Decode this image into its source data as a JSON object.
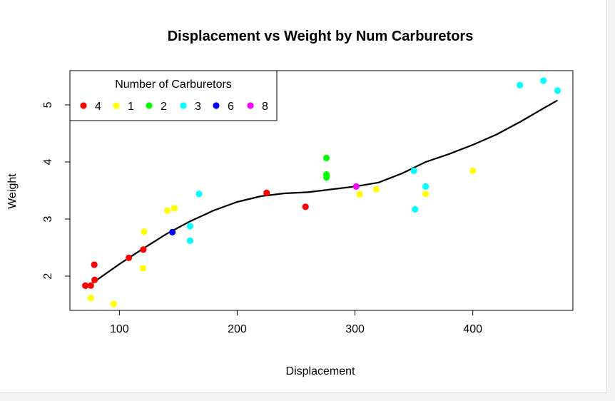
{
  "chart_data": {
    "type": "scatter",
    "title": "Displacement vs Weight by Num Carburetors",
    "xlabel": "Displacement",
    "ylabel": "Weight",
    "xlim": [
      58,
      485
    ],
    "ylim": [
      1.4,
      5.6
    ],
    "x_ticks": [
      100,
      200,
      300,
      400
    ],
    "y_ticks": [
      2,
      3,
      4,
      5
    ],
    "grid": false,
    "legend": {
      "title": "Number of Carburetors",
      "placement": "top-left",
      "entries": [
        {
          "label": "4",
          "color": "#ff0000"
        },
        {
          "label": "1",
          "color": "#ffff00"
        },
        {
          "label": "2",
          "color": "#00ff00"
        },
        {
          "label": "3",
          "color": "#00ffff"
        },
        {
          "label": "6",
          "color": "#0000ff"
        },
        {
          "label": "8",
          "color": "#ff00ff"
        }
      ]
    },
    "series": [
      {
        "name": "4",
        "color": "#ff0000",
        "points": [
          [
            71.1,
            1.835
          ],
          [
            75.7,
            1.835
          ],
          [
            78.7,
            2.2
          ],
          [
            79.0,
            1.935
          ],
          [
            108,
            2.32
          ],
          [
            120.3,
            2.465
          ],
          [
            225,
            3.46
          ],
          [
            258,
            3.215
          ]
        ]
      },
      {
        "name": "1",
        "color": "#ffff00",
        "points": [
          [
            75.7,
            1.615
          ],
          [
            95.1,
            1.513
          ],
          [
            120.1,
            2.14
          ],
          [
            121.0,
            2.78
          ],
          [
            140.8,
            3.15
          ],
          [
            146.7,
            3.19
          ],
          [
            304,
            3.435
          ],
          [
            318,
            3.52
          ],
          [
            360,
            3.44
          ],
          [
            400,
            3.845
          ]
        ]
      },
      {
        "name": "2",
        "color": "#00ff00",
        "points": [
          [
            275.8,
            4.07
          ],
          [
            275.8,
            3.78
          ],
          [
            275.8,
            3.73
          ]
        ]
      },
      {
        "name": "3",
        "color": "#00ffff",
        "points": [
          [
            160,
            2.875
          ],
          [
            160,
            2.62
          ],
          [
            167.6,
            3.44
          ],
          [
            350,
            3.845
          ],
          [
            351,
            3.17
          ],
          [
            360,
            3.57
          ],
          [
            440,
            5.345
          ],
          [
            460,
            5.424
          ],
          [
            472,
            5.25
          ]
        ]
      },
      {
        "name": "6",
        "color": "#0000ff",
        "points": [
          [
            145,
            2.77
          ]
        ]
      },
      {
        "name": "8",
        "color": "#ff00ff",
        "points": [
          [
            301,
            3.57
          ]
        ]
      }
    ],
    "smooth_line": {
      "color": "#000000",
      "points": [
        [
          71.1,
          1.78
        ],
        [
          80,
          1.92
        ],
        [
          100,
          2.21
        ],
        [
          120,
          2.48
        ],
        [
          140,
          2.74
        ],
        [
          160,
          2.96
        ],
        [
          180,
          3.15
        ],
        [
          200,
          3.3
        ],
        [
          220,
          3.4
        ],
        [
          240,
          3.45
        ],
        [
          260,
          3.47
        ],
        [
          280,
          3.52
        ],
        [
          300,
          3.57
        ],
        [
          320,
          3.64
        ],
        [
          340,
          3.8
        ],
        [
          360,
          4.0
        ],
        [
          380,
          4.14
        ],
        [
          400,
          4.3
        ],
        [
          420,
          4.48
        ],
        [
          440,
          4.7
        ],
        [
          460,
          4.94
        ],
        [
          472,
          5.08
        ]
      ]
    }
  }
}
